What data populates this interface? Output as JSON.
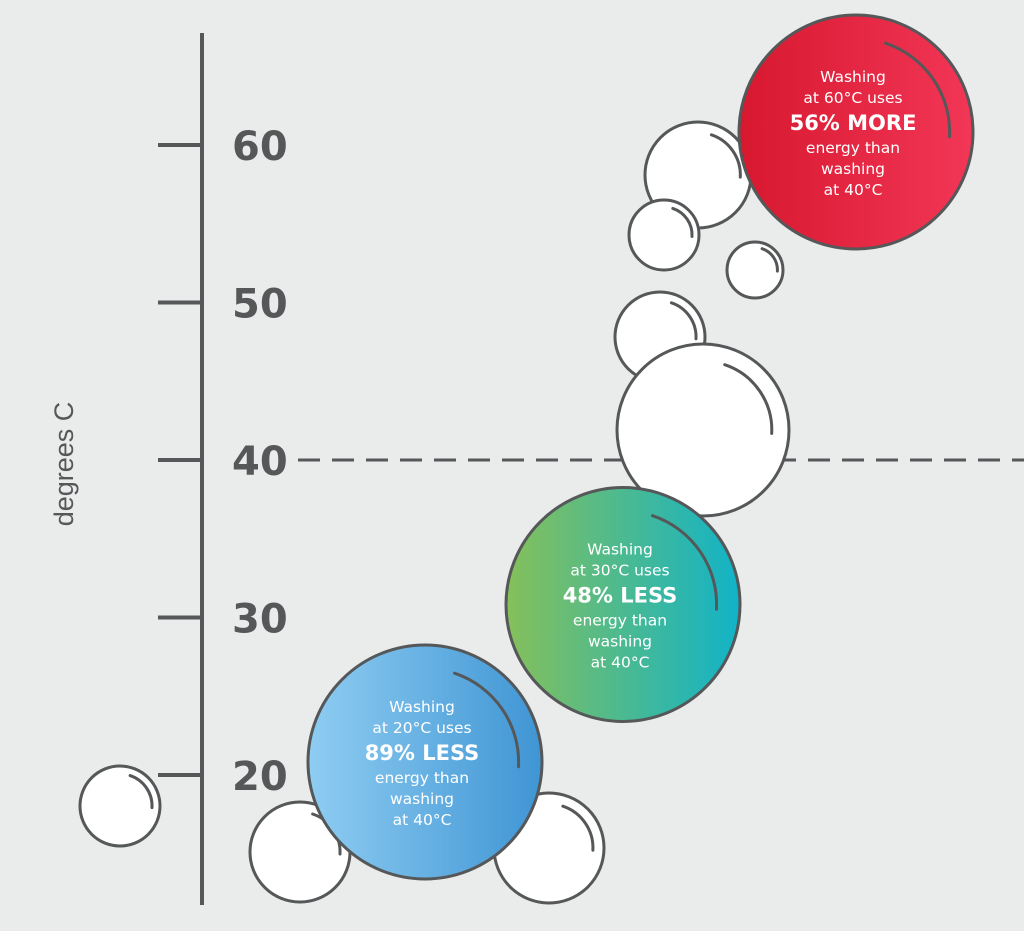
{
  "chart_data": {
    "type": "scatter",
    "ylabel": "degrees C",
    "y_ticks": [
      20,
      30,
      40,
      50,
      60
    ],
    "ylim": [
      14,
      66
    ],
    "reference_line": {
      "y": 40,
      "style": "dashed"
    },
    "points": [
      {
        "temperature": 20,
        "lines": [
          "Washing",
          "at 20°C uses"
        ],
        "highlight": "89% LESS",
        "tail": [
          "energy than",
          "washing",
          "at 40°C"
        ],
        "color_from": "#8fcdf2",
        "color_to": "#3f95d4"
      },
      {
        "temperature": 30,
        "lines": [
          "Washing",
          "at 30°C uses"
        ],
        "highlight": "48% LESS",
        "tail": [
          "energy than",
          "washing",
          "at 40°C"
        ],
        "color_from": "#86c05a",
        "color_to": "#11b3c8"
      },
      {
        "temperature": 60,
        "lines": [
          "Washing",
          "at 60°C uses"
        ],
        "highlight": "56% MORE",
        "tail": [
          "energy than",
          "washing",
          "at 40°C"
        ],
        "color_from": "#d7182f",
        "color_to": "#f23656"
      }
    ]
  },
  "colors": {
    "background": "#e9eceb",
    "axis": "#555759",
    "bubble_fill": "#ffffff"
  }
}
